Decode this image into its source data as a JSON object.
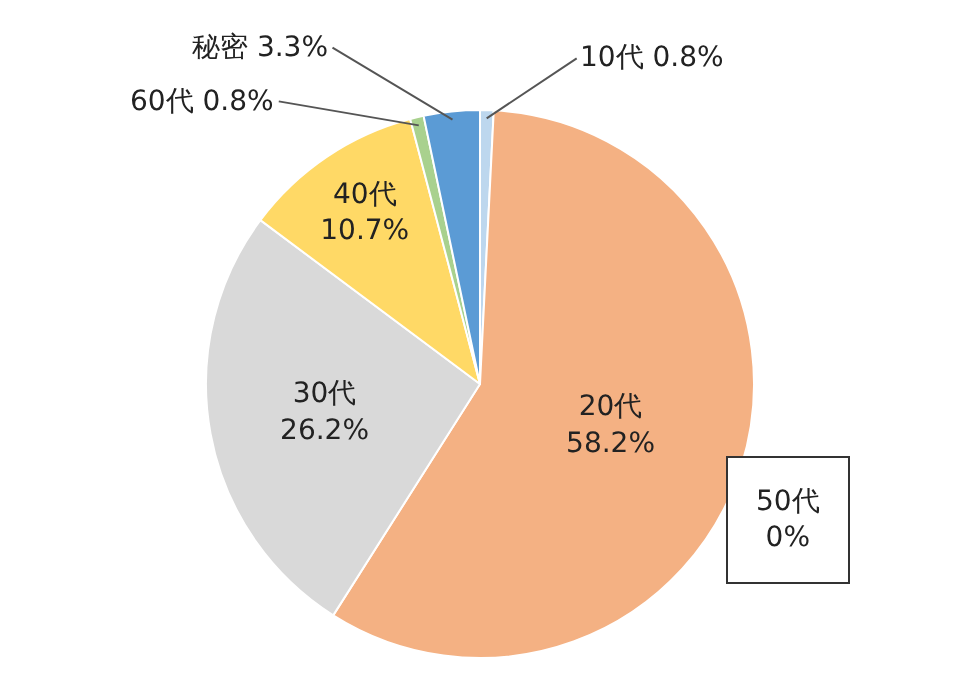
{
  "chart_data": {
    "type": "pie",
    "categories": [
      "10代",
      "20代",
      "30代",
      "40代",
      "50代",
      "60代",
      "秘密"
    ],
    "values": [
      0.8,
      58.2,
      26.2,
      10.7,
      0,
      0.8,
      3.3
    ],
    "value_labels": [
      "0.8%",
      "58.2%",
      "26.2%",
      "10.7%",
      "0%",
      "0.8%",
      "3.3%"
    ],
    "colors": [
      "#bdd7ee",
      "#f4b183",
      "#d9d9d9",
      "#ffd966",
      "#ffffff",
      "#a9d18e",
      "#5b9bd5"
    ],
    "legend": false
  }
}
